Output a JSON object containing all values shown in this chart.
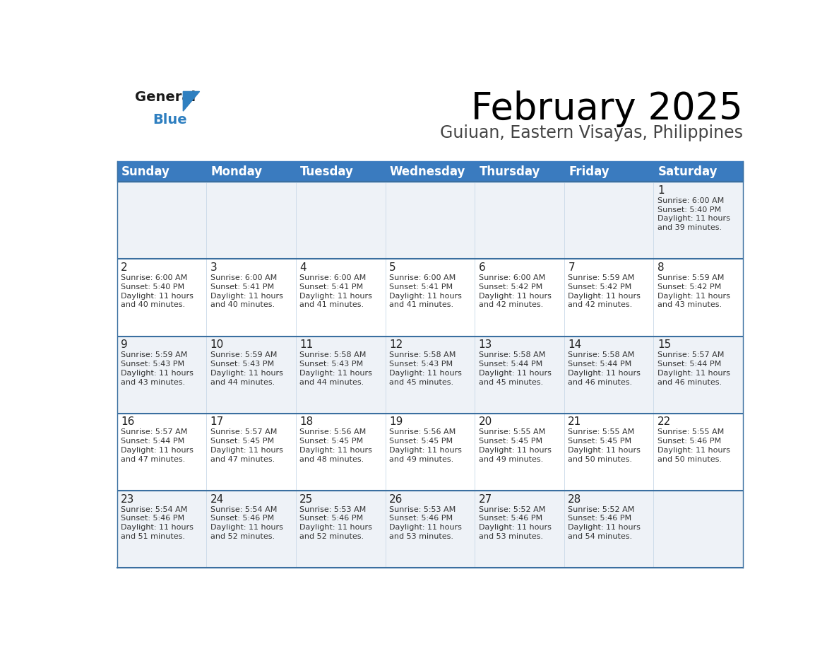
{
  "title": "February 2025",
  "subtitle": "Guiuan, Eastern Visayas, Philippines",
  "header_bg": "#3a7bbf",
  "header_text": "#ffffff",
  "row_bg_odd": "#eef2f7",
  "row_bg_even": "#ffffff",
  "day_headers": [
    "Sunday",
    "Monday",
    "Tuesday",
    "Wednesday",
    "Thursday",
    "Friday",
    "Saturday"
  ],
  "calendar_data": [
    [
      null,
      null,
      null,
      null,
      null,
      null,
      {
        "day": 1,
        "sunrise": "6:00 AM",
        "sunset": "5:40 PM",
        "daylight": "11 hours\nand 39 minutes."
      }
    ],
    [
      {
        "day": 2,
        "sunrise": "6:00 AM",
        "sunset": "5:40 PM",
        "daylight": "11 hours\nand 40 minutes."
      },
      {
        "day": 3,
        "sunrise": "6:00 AM",
        "sunset": "5:41 PM",
        "daylight": "11 hours\nand 40 minutes."
      },
      {
        "day": 4,
        "sunrise": "6:00 AM",
        "sunset": "5:41 PM",
        "daylight": "11 hours\nand 41 minutes."
      },
      {
        "day": 5,
        "sunrise": "6:00 AM",
        "sunset": "5:41 PM",
        "daylight": "11 hours\nand 41 minutes."
      },
      {
        "day": 6,
        "sunrise": "6:00 AM",
        "sunset": "5:42 PM",
        "daylight": "11 hours\nand 42 minutes."
      },
      {
        "day": 7,
        "sunrise": "5:59 AM",
        "sunset": "5:42 PM",
        "daylight": "11 hours\nand 42 minutes."
      },
      {
        "day": 8,
        "sunrise": "5:59 AM",
        "sunset": "5:42 PM",
        "daylight": "11 hours\nand 43 minutes."
      }
    ],
    [
      {
        "day": 9,
        "sunrise": "5:59 AM",
        "sunset": "5:43 PM",
        "daylight": "11 hours\nand 43 minutes."
      },
      {
        "day": 10,
        "sunrise": "5:59 AM",
        "sunset": "5:43 PM",
        "daylight": "11 hours\nand 44 minutes."
      },
      {
        "day": 11,
        "sunrise": "5:58 AM",
        "sunset": "5:43 PM",
        "daylight": "11 hours\nand 44 minutes."
      },
      {
        "day": 12,
        "sunrise": "5:58 AM",
        "sunset": "5:43 PM",
        "daylight": "11 hours\nand 45 minutes."
      },
      {
        "day": 13,
        "sunrise": "5:58 AM",
        "sunset": "5:44 PM",
        "daylight": "11 hours\nand 45 minutes."
      },
      {
        "day": 14,
        "sunrise": "5:58 AM",
        "sunset": "5:44 PM",
        "daylight": "11 hours\nand 46 minutes."
      },
      {
        "day": 15,
        "sunrise": "5:57 AM",
        "sunset": "5:44 PM",
        "daylight": "11 hours\nand 46 minutes."
      }
    ],
    [
      {
        "day": 16,
        "sunrise": "5:57 AM",
        "sunset": "5:44 PM",
        "daylight": "11 hours\nand 47 minutes."
      },
      {
        "day": 17,
        "sunrise": "5:57 AM",
        "sunset": "5:45 PM",
        "daylight": "11 hours\nand 47 minutes."
      },
      {
        "day": 18,
        "sunrise": "5:56 AM",
        "sunset": "5:45 PM",
        "daylight": "11 hours\nand 48 minutes."
      },
      {
        "day": 19,
        "sunrise": "5:56 AM",
        "sunset": "5:45 PM",
        "daylight": "11 hours\nand 49 minutes."
      },
      {
        "day": 20,
        "sunrise": "5:55 AM",
        "sunset": "5:45 PM",
        "daylight": "11 hours\nand 49 minutes."
      },
      {
        "day": 21,
        "sunrise": "5:55 AM",
        "sunset": "5:45 PM",
        "daylight": "11 hours\nand 50 minutes."
      },
      {
        "day": 22,
        "sunrise": "5:55 AM",
        "sunset": "5:46 PM",
        "daylight": "11 hours\nand 50 minutes."
      }
    ],
    [
      {
        "day": 23,
        "sunrise": "5:54 AM",
        "sunset": "5:46 PM",
        "daylight": "11 hours\nand 51 minutes."
      },
      {
        "day": 24,
        "sunrise": "5:54 AM",
        "sunset": "5:46 PM",
        "daylight": "11 hours\nand 52 minutes."
      },
      {
        "day": 25,
        "sunrise": "5:53 AM",
        "sunset": "5:46 PM",
        "daylight": "11 hours\nand 52 minutes."
      },
      {
        "day": 26,
        "sunrise": "5:53 AM",
        "sunset": "5:46 PM",
        "daylight": "11 hours\nand 53 minutes."
      },
      {
        "day": 27,
        "sunrise": "5:52 AM",
        "sunset": "5:46 PM",
        "daylight": "11 hours\nand 53 minutes."
      },
      {
        "day": 28,
        "sunrise": "5:52 AM",
        "sunset": "5:46 PM",
        "daylight": "11 hours\nand 54 minutes."
      },
      null
    ]
  ],
  "logo_color_general": "#1a1a1a",
  "logo_color_blue": "#2e7fc0",
  "logo_triangle_color": "#2e7fc0",
  "title_fontsize": 38,
  "subtitle_fontsize": 17,
  "header_fontsize": 12,
  "day_num_fontsize": 11,
  "cell_text_fontsize": 8.0,
  "border_color": "#3a6fa0",
  "divider_color": "#c8d8e8"
}
